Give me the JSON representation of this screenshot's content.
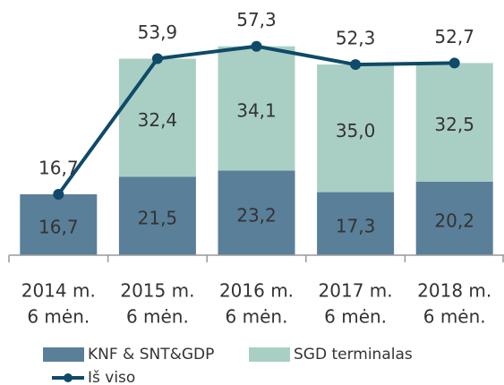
{
  "chart_data": {
    "type": "stacked-bar-line",
    "categories": [
      [
        "2014 m.",
        "6 mėn."
      ],
      [
        "2015 m.",
        "6 mėn."
      ],
      [
        "2016 m.",
        "6 mėn."
      ],
      [
        "2017 m.",
        "6 mėn."
      ],
      [
        "2018 m.",
        "6 mėn."
      ]
    ],
    "series": [
      {
        "name": "KNF & SNT&GDP",
        "color": "#5a7f98",
        "values": [
          16.7,
          21.5,
          23.2,
          17.3,
          20.2
        ],
        "value_labels": [
          "16,7",
          "21,5",
          "23,2",
          "17,3",
          "20,2"
        ]
      },
      {
        "name": "SGD terminalas",
        "color": "#a9cfc5",
        "values": [
          null,
          32.4,
          34.1,
          35.0,
          32.5
        ],
        "value_labels": [
          null,
          "32,4",
          "34,1",
          "35,0",
          "32,5"
        ]
      },
      {
        "name": "Iš viso",
        "color": "#0f4a68",
        "kind": "line",
        "values": [
          16.7,
          53.9,
          57.3,
          52.3,
          52.7
        ],
        "value_labels": [
          "16,7",
          "53,9",
          "57,3",
          "52,3",
          "52,7"
        ]
      }
    ],
    "ylim": [
      0,
      70
    ]
  }
}
